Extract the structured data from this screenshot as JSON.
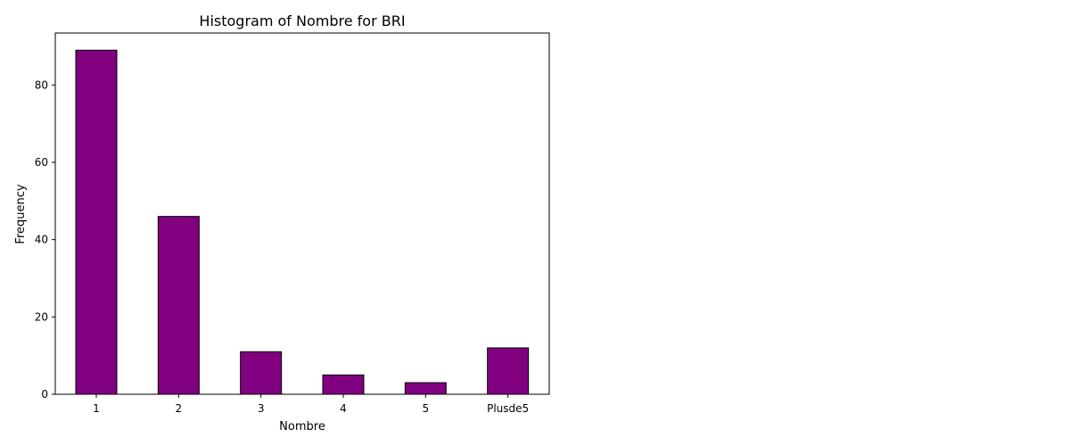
{
  "chart_data": {
    "type": "bar",
    "title": "Histogram of Nombre for BRI",
    "xlabel": "Nombre",
    "ylabel": "Frequency",
    "categories": [
      "1",
      "2",
      "3",
      "4",
      "5",
      "Plusde5"
    ],
    "values": [
      89,
      46,
      11,
      5,
      3,
      12
    ],
    "ylim": [
      0,
      93.45
    ],
    "yticks": [
      0,
      20,
      40,
      60,
      80
    ],
    "bar_color": "#800080",
    "edge_color": "#000000",
    "grid": false,
    "legend": "none"
  }
}
